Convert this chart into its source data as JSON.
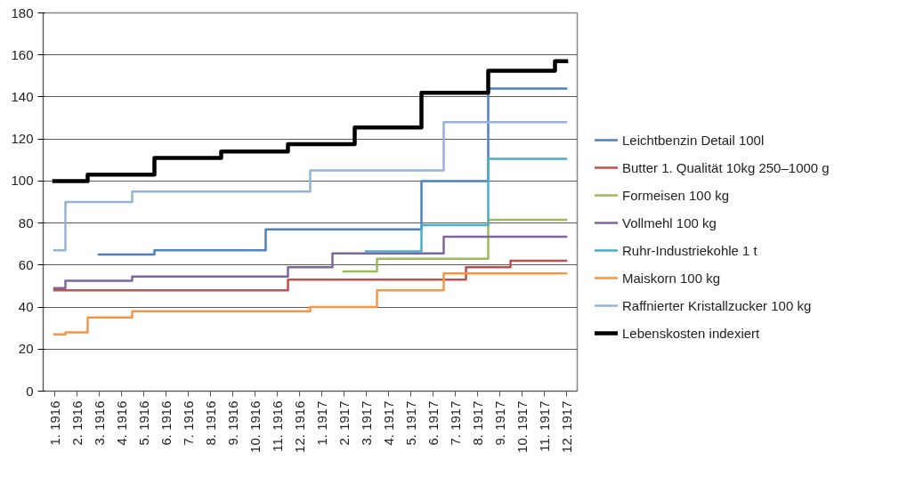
{
  "chart_data": {
    "type": "step",
    "categories": [
      "1. 1916",
      "2. 1916",
      "3. 1916",
      "4. 1916",
      "5. 1916",
      "6. 1916",
      "7. 1916",
      "8. 1916",
      "9. 1916",
      "10. 1916",
      "11. 1916",
      "12. 1916",
      "1. 1917",
      "2. 1917",
      "3. 1917",
      "4. 1917",
      "5. 1917",
      "6. 1917",
      "7. 1917",
      "8. 1917",
      "9. 1917",
      "10. 1917",
      "11. 1917",
      "12. 1917"
    ],
    "series": [
      {
        "name": "Leichtbenzin Detail 100l",
        "color": "#4f81bd",
        "values": [
          null,
          null,
          65,
          65,
          65,
          67,
          67,
          67,
          67,
          67,
          77,
          77,
          77,
          77,
          77,
          77,
          77,
          100,
          100,
          100,
          144,
          144,
          144,
          144
        ]
      },
      {
        "name": "Butter 1. Qualität 10kg 250–1000 g",
        "color": "#c0504d",
        "values": [
          48,
          48,
          48,
          48,
          48,
          48,
          48,
          48,
          48,
          48,
          48,
          53,
          53,
          53,
          53,
          53,
          53,
          53,
          53,
          59,
          59,
          62,
          62,
          62
        ]
      },
      {
        "name": "Formeisen 100 kg",
        "color": "#9bbb59",
        "values": [
          null,
          null,
          null,
          null,
          null,
          null,
          null,
          null,
          null,
          null,
          null,
          null,
          null,
          57,
          57,
          63,
          63,
          63,
          63,
          63,
          81.5,
          81.5,
          81.5,
          81.5
        ]
      },
      {
        "name": "Vollmehl 100 kg",
        "color": "#8064a2",
        "values": [
          49,
          52.5,
          52.5,
          52.5,
          54.5,
          54.5,
          54.5,
          54.5,
          54.5,
          54.5,
          54.5,
          59,
          59,
          65.5,
          65.5,
          65.5,
          65.5,
          65.5,
          73.5,
          73.5,
          73.5,
          73.5,
          73.5,
          73.5
        ]
      },
      {
        "name": "Ruhr-Industriekohle 1 t",
        "color": "#4bacc6",
        "values": [
          null,
          null,
          null,
          null,
          null,
          null,
          null,
          null,
          null,
          null,
          null,
          null,
          null,
          null,
          66.5,
          66.5,
          66.5,
          79,
          79,
          79,
          110.5,
          110.5,
          110.5,
          110.5
        ]
      },
      {
        "name": "Maiskorn 100 kg",
        "color": "#f79646",
        "values": [
          27,
          28,
          35,
          35,
          38,
          38,
          38,
          38,
          38,
          38,
          38,
          38,
          40,
          40,
          40,
          48,
          48,
          48,
          56,
          56,
          56,
          56,
          56,
          56
        ]
      },
      {
        "name": "Raffnierter Kristallzucker 100 kg",
        "color": "#95b3d7",
        "values": [
          67,
          90,
          90,
          90,
          95,
          95,
          95,
          95,
          95,
          95,
          95,
          95,
          105,
          105,
          105,
          105,
          105,
          105,
          128,
          128,
          128,
          128,
          128,
          128
        ]
      },
      {
        "name": "Lebenskosten indexiert",
        "color": "#000000",
        "values": [
          100,
          100,
          103,
          103,
          103,
          111,
          111,
          111,
          114,
          114,
          114,
          117.5,
          117.5,
          117.5,
          125.5,
          125.5,
          125.5,
          142,
          142,
          142,
          152.5,
          152.5,
          152.5,
          157
        ]
      }
    ],
    "ylim": [
      0,
      180
    ],
    "yticks": [
      0,
      20,
      40,
      60,
      80,
      100,
      120,
      140,
      160,
      180
    ],
    "grid": "y",
    "legend": "right"
  }
}
